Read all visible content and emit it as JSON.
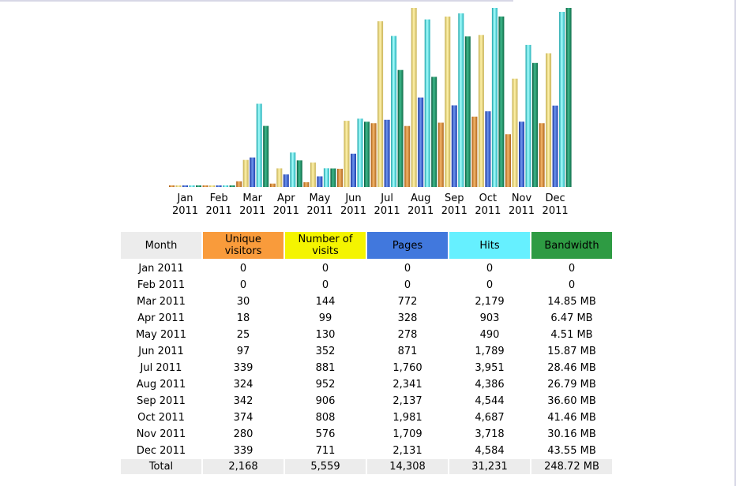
{
  "chart_data": {
    "type": "bar",
    "categories": [
      "Jan 2011",
      "Feb 2011",
      "Mar 2011",
      "Apr 2011",
      "May 2011",
      "Jun 2011",
      "Jul 2011",
      "Aug 2011",
      "Sep 2011",
      "Oct 2011",
      "Nov 2011",
      "Dec 2011"
    ],
    "x_tick_labels": [
      [
        "Jan",
        "2011"
      ],
      [
        "Feb",
        "2011"
      ],
      [
        "Mar",
        "2011"
      ],
      [
        "Apr",
        "2011"
      ],
      [
        "May",
        "2011"
      ],
      [
        "Jun",
        "2011"
      ],
      [
        "Jul",
        "2011"
      ],
      [
        "Aug",
        "2011"
      ],
      [
        "Sep",
        "2011"
      ],
      [
        "Oct",
        "2011"
      ],
      [
        "Nov",
        "2011"
      ],
      [
        "Dec",
        "2011"
      ]
    ],
    "series": [
      {
        "name": "Unique visitors",
        "values": [
          0,
          0,
          30,
          18,
          25,
          97,
          339,
          324,
          342,
          374,
          280,
          339
        ],
        "color": "#f99b3b"
      },
      {
        "name": "Number of visits",
        "values": [
          0,
          0,
          144,
          99,
          130,
          352,
          881,
          952,
          906,
          808,
          576,
          711
        ],
        "color": "#f4f400"
      },
      {
        "name": "Pages",
        "values": [
          0,
          0,
          772,
          328,
          278,
          871,
          1760,
          2341,
          2137,
          1981,
          1709,
          2131
        ],
        "color": "#4178dd"
      },
      {
        "name": "Hits",
        "values": [
          0,
          0,
          2179,
          903,
          490,
          1789,
          3951,
          4386,
          4544,
          4687,
          3718,
          4584
        ],
        "color": "#66f0ff"
      },
      {
        "name": "Bandwidth",
        "values": [
          0,
          0,
          14.85,
          6.47,
          4.51,
          15.87,
          28.46,
          26.79,
          36.6,
          41.46,
          30.16,
          43.55
        ],
        "unit": "MB",
        "color": "#2e9b43"
      }
    ],
    "scale_groups": [
      [
        "Unique visitors",
        "Number of visits"
      ],
      [
        "Pages",
        "Hits"
      ],
      [
        "Bandwidth"
      ]
    ],
    "grid": false,
    "legend": "none"
  },
  "table": {
    "headers": [
      "Month",
      "Unique visitors",
      "Number of visits",
      "Pages",
      "Hits",
      "Bandwidth"
    ],
    "rows": [
      [
        "Jan 2011",
        "0",
        "0",
        "0",
        "0",
        "0"
      ],
      [
        "Feb 2011",
        "0",
        "0",
        "0",
        "0",
        "0"
      ],
      [
        "Mar 2011",
        "30",
        "144",
        "772",
        "2,179",
        "14.85 MB"
      ],
      [
        "Apr 2011",
        "18",
        "99",
        "328",
        "903",
        "6.47 MB"
      ],
      [
        "May 2011",
        "25",
        "130",
        "278",
        "490",
        "4.51 MB"
      ],
      [
        "Jun 2011",
        "97",
        "352",
        "871",
        "1,789",
        "15.87 MB"
      ],
      [
        "Jul 2011",
        "339",
        "881",
        "1,760",
        "3,951",
        "28.46 MB"
      ],
      [
        "Aug 2011",
        "324",
        "952",
        "2,341",
        "4,386",
        "26.79 MB"
      ],
      [
        "Sep 2011",
        "342",
        "906",
        "2,137",
        "4,544",
        "36.60 MB"
      ],
      [
        "Oct 2011",
        "374",
        "808",
        "1,981",
        "4,687",
        "41.46 MB"
      ],
      [
        "Nov 2011",
        "280",
        "576",
        "1,709",
        "3,718",
        "30.16 MB"
      ],
      [
        "Dec 2011",
        "339",
        "711",
        "2,131",
        "4,584",
        "43.55 MB"
      ]
    ],
    "total": [
      "Total",
      "2,168",
      "5,559",
      "14,308",
      "31,231",
      "248.72 MB"
    ]
  }
}
